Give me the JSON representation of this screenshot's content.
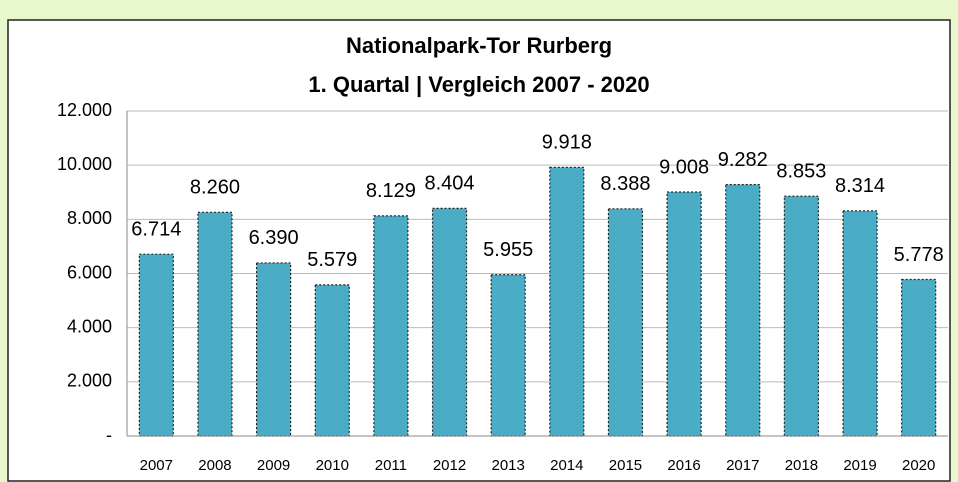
{
  "chart_data": {
    "type": "bar",
    "title": "Nationalpark-Tor Rurberg",
    "subtitle": "1. Quartal | Vergleich 2007 - 2020",
    "categories": [
      "2007",
      "2008",
      "2009",
      "2010",
      "2011",
      "2012",
      "2013",
      "2014",
      "2015",
      "2016",
      "2017",
      "2018",
      "2019",
      "2020"
    ],
    "values": [
      6714,
      8260,
      6390,
      5579,
      8129,
      8404,
      5955,
      9918,
      8388,
      9008,
      9282,
      8853,
      8314,
      5778
    ],
    "value_labels": [
      "6.714",
      "8.260",
      "6.390",
      "5.579",
      "8.129",
      "8.404",
      "5.955",
      "9.918",
      "8.388",
      "9.008",
      "9.282",
      "8.853",
      "8.314",
      "5.778"
    ],
    "color": "#4bacc6",
    "ylim": [
      0,
      12000
    ],
    "yticks": [
      {
        "value": 0,
        "label": "-"
      },
      {
        "value": 2000,
        "label": "2.000"
      },
      {
        "value": 4000,
        "label": "4.000"
      },
      {
        "value": 6000,
        "label": "6.000"
      },
      {
        "value": 8000,
        "label": "8.000"
      },
      {
        "value": 10000,
        "label": "10.000"
      },
      {
        "value": 12000,
        "label": "12.000"
      }
    ],
    "grid": true
  }
}
